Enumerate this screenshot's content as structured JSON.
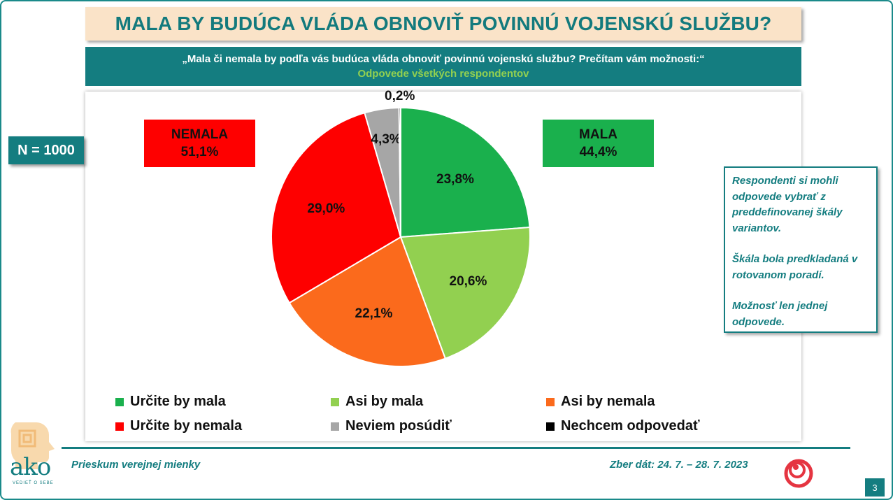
{
  "title": "MALA BY BUDÚCA VLÁDA OBNOVIŤ POVINNÚ VOJENSKÚ SLUŽBU?",
  "question": "„Mala či nemala by podľa vás budúca vláda obnoviť povinnú vojenskú službu? Prečítam vám možnosti:“",
  "subtitle": "Odpovede všetkých respondentov",
  "sample": "N = 1000",
  "summary": {
    "nemala_label": "NEMALA",
    "nemala_value": "51,1%",
    "mala_label": "MALA",
    "mala_value": "44,4%"
  },
  "note": {
    "p1": "Respondenti si mohli odpovede vybrať z preddefinovanej škály variantov.",
    "p2": "Škála bola predkladaná v rotovanom poradí.",
    "p3": "Možnosť len jednej odpovede."
  },
  "footer": {
    "left": "Prieskum verejnej mienky",
    "right": "Zber dát: 24. 7. – 28. 7. 2023",
    "page": "3",
    "logo_text": "ako",
    "logo_tagline": "VEDIEŤ O SEBE"
  },
  "icons": [
    "ako-logo-icon",
    "brand-spiral-icon"
  ],
  "chart_data": {
    "type": "pie",
    "title": "",
    "start_angle_deg": 0,
    "direction": "clockwise",
    "categories": [
      "Určite by mala",
      "Asi by mala",
      "Asi by nemala",
      "Určite by nemala",
      "Neviem posúdiť",
      "Nechcem odpovedať"
    ],
    "values": [
      23.8,
      20.6,
      22.1,
      29.0,
      4.3,
      0.2
    ],
    "labels": [
      "23,8%",
      "20,6%",
      "22,1%",
      "29,0%",
      "4,3%",
      "0,2%"
    ],
    "colors": [
      "#1ab04d",
      "#92d050",
      "#fb6a1c",
      "#fe0000",
      "#a6a6a6",
      "#000000"
    ],
    "legend_position": "bottom"
  }
}
